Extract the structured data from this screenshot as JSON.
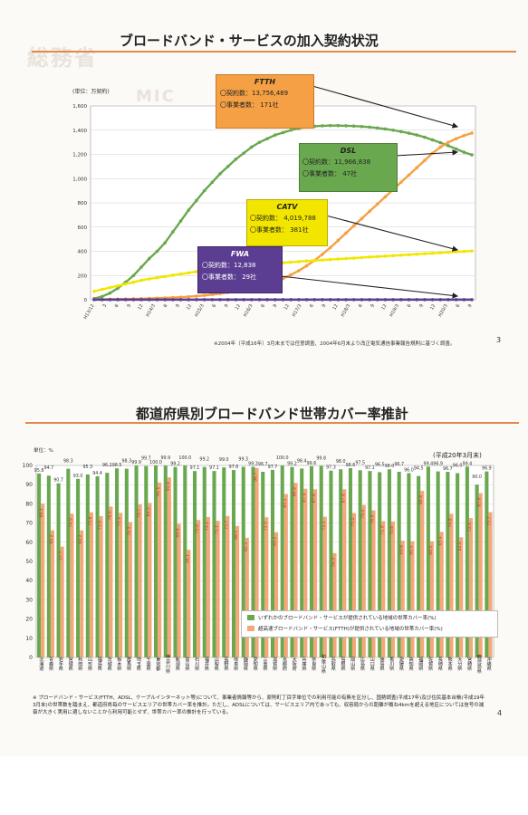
{
  "watermark": {
    "logo_text": "総務省",
    "sub_text": "MIC"
  },
  "top_chart": {
    "title": "ブロードバンド・サービスの加入契約状況",
    "unit": "(単位：万契約)",
    "page_number": "3",
    "source_note": "※2004年（平成16年）3月末までは任意調査、2004年6月末より改正電気通信事業報告規則に基づく調査。",
    "callouts": [
      {
        "name": "FTTH",
        "line1": "〇契約数：13,756,489",
        "line2": "〇事業者数： 171社",
        "color": "#f5a044"
      },
      {
        "name": "DSL",
        "line1": "〇契約数：11,966,838",
        "line2": "〇事業者数： 47社",
        "color": "#6aa84f"
      },
      {
        "name": "CATV",
        "line1": "〇契約数： 4,019,788",
        "line2": "〇事業者数： 381社",
        "color": "#f2e600"
      },
      {
        "name": "FWA",
        "line1": "〇契約数：12,838",
        "line2": "〇事業者数： 29社",
        "color": "#5b3d91"
      }
    ]
  },
  "bottom_chart": {
    "title": "都道府県別ブロードバンド世帯カバー率推計",
    "unit": "単位：%",
    "date_note": "(平成20年3月末)",
    "legend": [
      "いずれかのブロードバンド・サービスが提供されている地域の世帯カバー率(%)",
      "超高速ブロードバンド・サービス(FTTH)が提供されている地域の世帯カバー率(%)"
    ],
    "page_number": "4",
    "footnote": "※ ブロードバンド・サービス(FTTH、ADSL、ケーブルインターネット等)について、事業者情報等から、原則町丁目字単位での利用可能の有無を区分し、国勢調査(平成17年)及び住民基本台帳(平成19年3月末)の世帯数を踏まえ、都道府県毎のサービスエリアの世帯カバー率を推計。ただし、ADSLについては、サービスエリア内であっても、収容局からの距離が概ね4kmを超える地区については信号の減衰が大きく実用に適しないことから利用可能とせず、世帯カバー率の推計を行っている。"
  },
  "chart_data": [
    {
      "type": "line",
      "title": "ブロードバンド・サービスの加入契約状況",
      "ylabel": "(単位：万契約)",
      "ylim": [
        0,
        1600
      ],
      "yticks": [
        0,
        200,
        400,
        600,
        800,
        1000,
        1200,
        1400,
        1600
      ],
      "xticks": [
        "H13/12",
        "3",
        "6",
        "9",
        "12",
        "H14/3",
        "6",
        "9",
        "12",
        "H15/3",
        "6",
        "9",
        "12",
        "H16/3",
        "6",
        "9",
        "12",
        "H17/3",
        "6",
        "9",
        "12",
        "H18/3",
        "6",
        "9",
        "12",
        "H19/3",
        "6",
        "9",
        "12",
        "H20/3",
        "6",
        "9"
      ],
      "grid": true,
      "series": [
        {
          "name": "DSL",
          "color": "#6aa84f",
          "values": [
            10,
            26,
            55,
            95,
            145,
            200,
            270,
            340,
            400,
            470,
            560,
            650,
            740,
            820,
            900,
            970,
            1040,
            1100,
            1160,
            1210,
            1260,
            1300,
            1330,
            1360,
            1380,
            1400,
            1415,
            1425,
            1432,
            1436,
            1438,
            1438,
            1436,
            1434,
            1430,
            1425,
            1418,
            1410,
            1400,
            1388,
            1375,
            1360,
            1342,
            1320,
            1297,
            1272,
            1245,
            1218,
            1196
          ]
        },
        {
          "name": "FTTH",
          "color": "#f5a044",
          "values": [
            2,
            3,
            4,
            5,
            6,
            7,
            9,
            11,
            13,
            15,
            18,
            21,
            25,
            30,
            36,
            43,
            51,
            60,
            70,
            82,
            96,
            112,
            130,
            150,
            175,
            205,
            240,
            280,
            325,
            375,
            430,
            490,
            550,
            610,
            670,
            730,
            790,
            850,
            910,
            970,
            1030,
            1090,
            1150,
            1210,
            1260,
            1300,
            1330,
            1355,
            1376
          ]
        },
        {
          "name": "CATV",
          "color": "#f2e600",
          "values": [
            70,
            85,
            100,
            115,
            130,
            145,
            160,
            172,
            182,
            192,
            202,
            212,
            222,
            232,
            240,
            248,
            256,
            264,
            270,
            276,
            282,
            288,
            294,
            300,
            305,
            310,
            315,
            320,
            324,
            328,
            332,
            336,
            340,
            344,
            348,
            352,
            356,
            360,
            364,
            368,
            372,
            376,
            380,
            384,
            388,
            392,
            396,
            399,
            402
          ]
        },
        {
          "name": "FWA",
          "color": "#5b3d91",
          "values": [
            1,
            1,
            1,
            1,
            1,
            1,
            1,
            1,
            1,
            1,
            1,
            1,
            1,
            1,
            1,
            1,
            1,
            1,
            1,
            1,
            1,
            1,
            1,
            1,
            1,
            1,
            1,
            1,
            1,
            1,
            1,
            1,
            1,
            1,
            1,
            1,
            1,
            1,
            1,
            1,
            1,
            1,
            1,
            1,
            1,
            1,
            1,
            1,
            1
          ]
        }
      ]
    },
    {
      "type": "bar",
      "title": "都道府県別ブロードバンド世帯カバー率推計",
      "ylabel": "単位：%",
      "ylim": [
        0,
        100
      ],
      "yticks": [
        0,
        10,
        20,
        30,
        40,
        50,
        60,
        70,
        80,
        90,
        100
      ],
      "grid": true,
      "categories": [
        "北海道",
        "青森県",
        "岩手県",
        "宮城県",
        "秋田県",
        "山形県",
        "福島県",
        "茨城県",
        "栃木県",
        "群馬県",
        "埼玉県",
        "千葉県",
        "東京都",
        "神奈川県",
        "新潟県",
        "富山県",
        "石川県",
        "福井県",
        "山梨県",
        "長野県",
        "岐阜県",
        "静岡県",
        "愛知県",
        "三重県",
        "滋賀県",
        "京都府",
        "大阪府",
        "兵庫県",
        "奈良県",
        "和歌山県",
        "鳥取県",
        "島根県",
        "岡山県",
        "広島県",
        "山口県",
        "徳島県",
        "香川県",
        "愛媛県",
        "高知県",
        "福岡県",
        "佐賀県",
        "長崎県",
        "熊本県",
        "大分県",
        "宮崎県",
        "鹿児島県",
        "沖縄県"
      ],
      "series": [
        {
          "name": "いずれかのブロードバンド・サービスが提供されている地域の世帯カバー率(%)",
          "color": "#6aa84f",
          "values": [
            95.8,
            94.7,
            90.7,
            98.3,
            93.0,
            95.3,
            94.4,
            96.2,
            98.5,
            98.3,
            99.9,
            99.7,
            100,
            99.9,
            99.2,
            100,
            97.1,
            99.2,
            97.1,
            99.0,
            97.6,
            99.3,
            99.3,
            96.7,
            97.7,
            100,
            99.2,
            98.4,
            99.6,
            99.8,
            97.3,
            98.0,
            98.6,
            97.5,
            97.1,
            96.5,
            98.0,
            96.7,
            96.0,
            94.5,
            99.4,
            96.9,
            96.7,
            96.0,
            99.4,
            90.0,
            96.9
          ]
        },
        {
          "name": "超高速ブロードバンド・サービス(FTTH)が提供されている地域の世帯カバー率(%)",
          "color": "#f5a77a",
          "values": [
            80.1,
            66.2,
            57.7,
            74.9,
            66.2,
            75.6,
            73.6,
            78.6,
            75.3,
            70.5,
            79.7,
            80.5,
            91.1,
            93.8,
            69.6,
            56.1,
            71.6,
            73.1,
            71.2,
            73.7,
            68.5,
            62.3,
            98.7,
            73.0,
            65.2,
            85.1,
            90.9,
            87.9,
            87.6,
            73.3,
            54.3,
            87.6,
            75.2,
            79.4,
            76.6,
            71.0,
            70.8,
            60.8,
            60.5,
            86.8,
            60.5,
            65.4,
            74.8,
            62.6,
            72.6,
            85.6,
            75.7
          ]
        }
      ]
    }
  ]
}
